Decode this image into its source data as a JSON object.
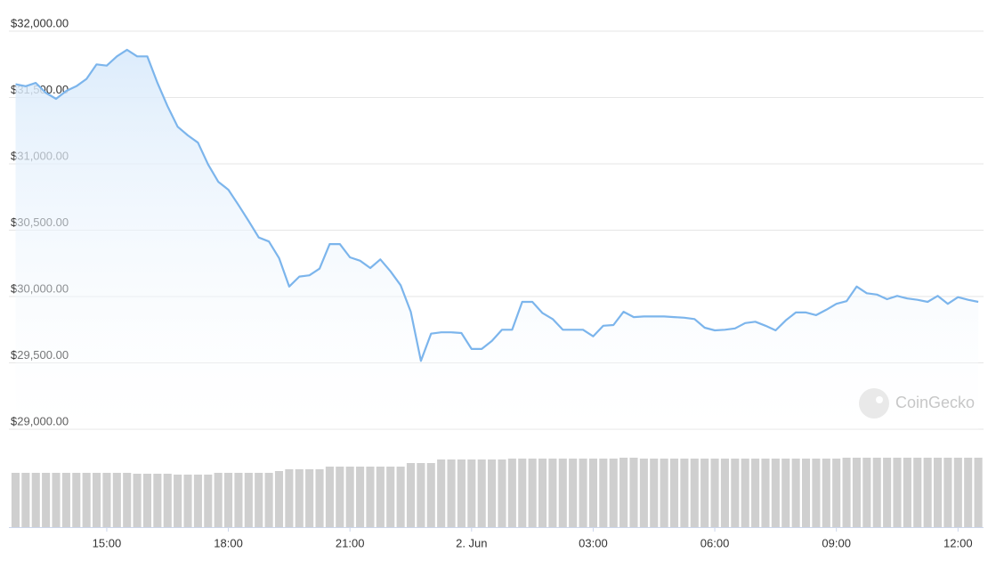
{
  "chart_data": {
    "type": "line",
    "color": "#7cb5ec",
    "grid": true,
    "watermark": "CoinGecko",
    "xlim": [
      12.63,
      36.63
    ],
    "ylim": [
      29000,
      32000
    ],
    "yticks": [
      {
        "value": 29000,
        "label": "$29,000.00"
      },
      {
        "value": 29500,
        "label": "$29,500.00"
      },
      {
        "value": 30000,
        "label": "$30,000.00"
      },
      {
        "value": 30500,
        "label": "$30,500.00"
      },
      {
        "value": 31000,
        "label": "$31,000.00"
      },
      {
        "value": 31500,
        "label": "$31,500.00"
      },
      {
        "value": 32000,
        "label": "$32,000.00"
      }
    ],
    "xticks": [
      {
        "value": 15,
        "label": "15:00"
      },
      {
        "value": 18,
        "label": "18:00"
      },
      {
        "value": 21,
        "label": "21:00"
      },
      {
        "value": 24,
        "label": "2. Jun"
      },
      {
        "value": 27,
        "label": "03:00"
      },
      {
        "value": 30,
        "label": "06:00"
      },
      {
        "value": 33,
        "label": "09:00"
      },
      {
        "value": 36,
        "label": "12:00"
      }
    ],
    "x": [
      12.75,
      13,
      13.25,
      13.5,
      13.75,
      14,
      14.25,
      14.5,
      14.75,
      15,
      15.25,
      15.5,
      15.75,
      16,
      16.25,
      16.5,
      16.75,
      17,
      17.25,
      17.5,
      17.75,
      18,
      18.25,
      18.5,
      18.75,
      19,
      19.25,
      19.5,
      19.75,
      20,
      20.25,
      20.5,
      20.75,
      21,
      21.25,
      21.5,
      21.75,
      22,
      22.25,
      22.5,
      22.75,
      23,
      23.25,
      23.5,
      23.75,
      24,
      24.25,
      24.5,
      24.75,
      25,
      25.25,
      25.5,
      25.75,
      26,
      26.25,
      26.5,
      26.75,
      27,
      27.25,
      27.5,
      27.75,
      28,
      28.25,
      28.5,
      28.75,
      29,
      29.25,
      29.5,
      29.75,
      30,
      30.25,
      30.5,
      30.75,
      31,
      31.25,
      31.5,
      31.75,
      32,
      32.25,
      32.5,
      32.75,
      33,
      33.25,
      33.5,
      33.75,
      34,
      34.25,
      34.5,
      34.75,
      35,
      35.25,
      35.5,
      35.75,
      36,
      36.25,
      36.5
    ],
    "values": [
      31600,
      31585,
      31610,
      31535,
      31490,
      31550,
      31585,
      31640,
      31750,
      31740,
      31810,
      31860,
      31810,
      31810,
      31610,
      31435,
      31280,
      31215,
      31160,
      30995,
      30865,
      30805,
      30690,
      30570,
      30445,
      30415,
      30290,
      30075,
      30150,
      30160,
      30210,
      30395,
      30395,
      30295,
      30270,
      30215,
      30280,
      30190,
      30085,
      29885,
      29515,
      29720,
      29730,
      29730,
      29725,
      29605,
      29605,
      29665,
      29750,
      29750,
      29960,
      29960,
      29875,
      29830,
      29750,
      29750,
      29750,
      29700,
      29780,
      29785,
      29885,
      29845,
      29850,
      29850,
      29850,
      29845,
      29840,
      29830,
      29765,
      29745,
      29750,
      29760,
      29800,
      29810,
      29780,
      29745,
      29820,
      29880,
      29880,
      29860,
      29900,
      29945,
      29965,
      30075,
      30025,
      30015,
      29980,
      30005,
      29985,
      29975,
      29960,
      30005,
      29945,
      29995,
      29975,
      29960
    ],
    "volume_color": "#cfcfcf",
    "volume_ylim": [
      0,
      80
    ],
    "volume": [
      61,
      61,
      61,
      61,
      61,
      61,
      61,
      61,
      61,
      61,
      61,
      61,
      60,
      60,
      60,
      60,
      59,
      59,
      59,
      59,
      61,
      61,
      61,
      61,
      61,
      61,
      63,
      65,
      65,
      65,
      65,
      68,
      68,
      68,
      68,
      68,
      68,
      68,
      68,
      72,
      72,
      72,
      76,
      76,
      76,
      76,
      76,
      76,
      76,
      77,
      77,
      77,
      77,
      77,
      77,
      77,
      77,
      77,
      77,
      77,
      78,
      78,
      77,
      77,
      77,
      77,
      77,
      77,
      77,
      77,
      77,
      77,
      77,
      77,
      77,
      77,
      77,
      77,
      77,
      77,
      77,
      77,
      78,
      78,
      78,
      78,
      78,
      78,
      78,
      78,
      78,
      78,
      78,
      78,
      78,
      78
    ]
  }
}
